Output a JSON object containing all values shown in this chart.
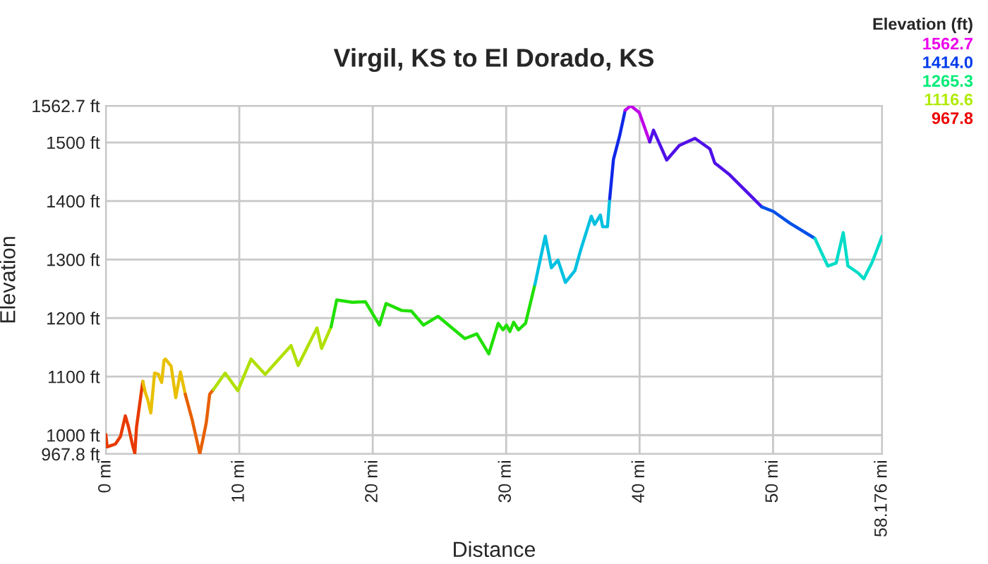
{
  "chart_data": {
    "type": "line",
    "title": "Virgil, KS to El Dorado, KS",
    "xlabel": "Distance",
    "ylabel": "Elevation",
    "clabel": "Elevation (ft)",
    "series": [
      {
        "color": "#e83a00",
        "x": [
          0,
          0.1,
          0.48,
          0.72,
          1.1,
          1.46,
          1.7,
          2.0,
          2.17,
          2.3,
          2.77
        ],
        "values": [
          1001,
          980,
          983,
          985,
          998,
          1033,
          1014,
          983,
          969,
          1014,
          1092
        ]
      },
      {
        "color": "#e8c000",
        "x": [
          2.77,
          2.94,
          3.15,
          3.37,
          3.65,
          3.94,
          4.18,
          4.36,
          4.47,
          4.89,
          5.24,
          5.59,
          5.95
        ],
        "values": [
          1092,
          1074,
          1060,
          1038,
          1106,
          1104,
          1090,
          1128,
          1130,
          1118,
          1064,
          1108,
          1070
        ]
      },
      {
        "color": "#e86000",
        "x": [
          5.95,
          6.47,
          6.83,
          7.04,
          7.25,
          7.53,
          7.78,
          8.06
        ],
        "values": [
          1070,
          1026,
          990,
          968,
          990,
          1022,
          1070,
          1078
        ]
      },
      {
        "color": "#b0e000",
        "x": [
          8.06,
          8.94,
          9.89,
          10.88,
          11.94,
          13.88,
          14.41,
          15.82,
          16.17,
          16.88
        ],
        "values": [
          1078,
          1106,
          1076,
          1130,
          1104,
          1153,
          1119,
          1183,
          1148,
          1185
        ]
      },
      {
        "color": "#20e000",
        "x": [
          16.88,
          17.3,
          18.46,
          19.45,
          20.5,
          21.0,
          22.17,
          22.9,
          23.8,
          24.9,
          26.9,
          27.8,
          28.7,
          29.4,
          29.76,
          30.03,
          30.28,
          30.56,
          30.92,
          31.45,
          32.15
        ],
        "values": [
          1185,
          1231,
          1227,
          1228,
          1188,
          1225,
          1213,
          1212,
          1188,
          1203,
          1165,
          1173,
          1139,
          1191,
          1180,
          1188,
          1177,
          1193,
          1180,
          1191,
          1257
        ]
      },
      {
        "color": "#00c0e0",
        "x": [
          32.15,
          32.93,
          33.39,
          33.88,
          34.44,
          35.15,
          35.58,
          36.38,
          36.63,
          37.06,
          37.23,
          37.59,
          37.76
        ],
        "values": [
          1257,
          1340,
          1286,
          1299,
          1261,
          1281,
          1316,
          1374,
          1360,
          1376,
          1356,
          1356,
          1404
        ]
      },
      {
        "color": "#1028e8",
        "x": [
          37.76,
          38.04,
          38.5,
          38.92
        ],
        "values": [
          1404,
          1471,
          1511,
          1555
        ]
      },
      {
        "color": "#c000e8",
        "x": [
          38.92,
          39.34,
          39.98,
          40.76
        ],
        "values": [
          1555,
          1562.7,
          1551,
          1501
        ]
      },
      {
        "color": "#5010e8",
        "x": [
          40.76,
          41.04,
          42.03,
          42.98,
          44.15,
          45.27,
          45.63,
          46.69,
          48.28,
          49.15
        ],
        "values": [
          1501,
          1521,
          1470,
          1495,
          1507,
          1489,
          1465,
          1446,
          1410,
          1390
        ]
      },
      {
        "color": "#0050e8",
        "x": [
          49.15,
          50.03,
          51.27,
          53.14
        ],
        "values": [
          1390,
          1382,
          1362,
          1336
        ]
      },
      {
        "color": "#00dcc8",
        "x": [
          53.14,
          54.1,
          54.73,
          55.26,
          55.61,
          56.38,
          56.8,
          57.44,
          58.176
        ],
        "values": [
          1336,
          1289,
          1294,
          1346,
          1289,
          1277,
          1267,
          1296,
          1340
        ]
      }
    ],
    "xlim": [
      0,
      58.176
    ],
    "xticks": [
      {
        "value": 0,
        "label": "0 mi"
      },
      {
        "value": 10,
        "label": "10 mi"
      },
      {
        "value": 20,
        "label": "20 mi"
      },
      {
        "value": 30,
        "label": "30 mi"
      },
      {
        "value": 40,
        "label": "40 mi"
      },
      {
        "value": 50,
        "label": "50 mi"
      },
      {
        "value": 58.176,
        "label": "58.176 mi"
      }
    ],
    "ylim": [
      967.8,
      1562.7
    ],
    "yticks": [
      {
        "value": 967.8,
        "label": "967.8 ft"
      },
      {
        "value": 1000,
        "label": "1000 ft"
      },
      {
        "value": 1100,
        "label": "1100 ft"
      },
      {
        "value": 1200,
        "label": "1200 ft"
      },
      {
        "value": 1300,
        "label": "1300 ft"
      },
      {
        "value": 1400,
        "label": "1400 ft"
      },
      {
        "value": 1500,
        "label": "1500 ft"
      },
      {
        "value": 1562.7,
        "label": "1562.7 ft"
      }
    ],
    "annotations": [
      "1562.7",
      "1414.0",
      "1265.3",
      "1116.6",
      "967.8"
    ],
    "grid": true
  }
}
